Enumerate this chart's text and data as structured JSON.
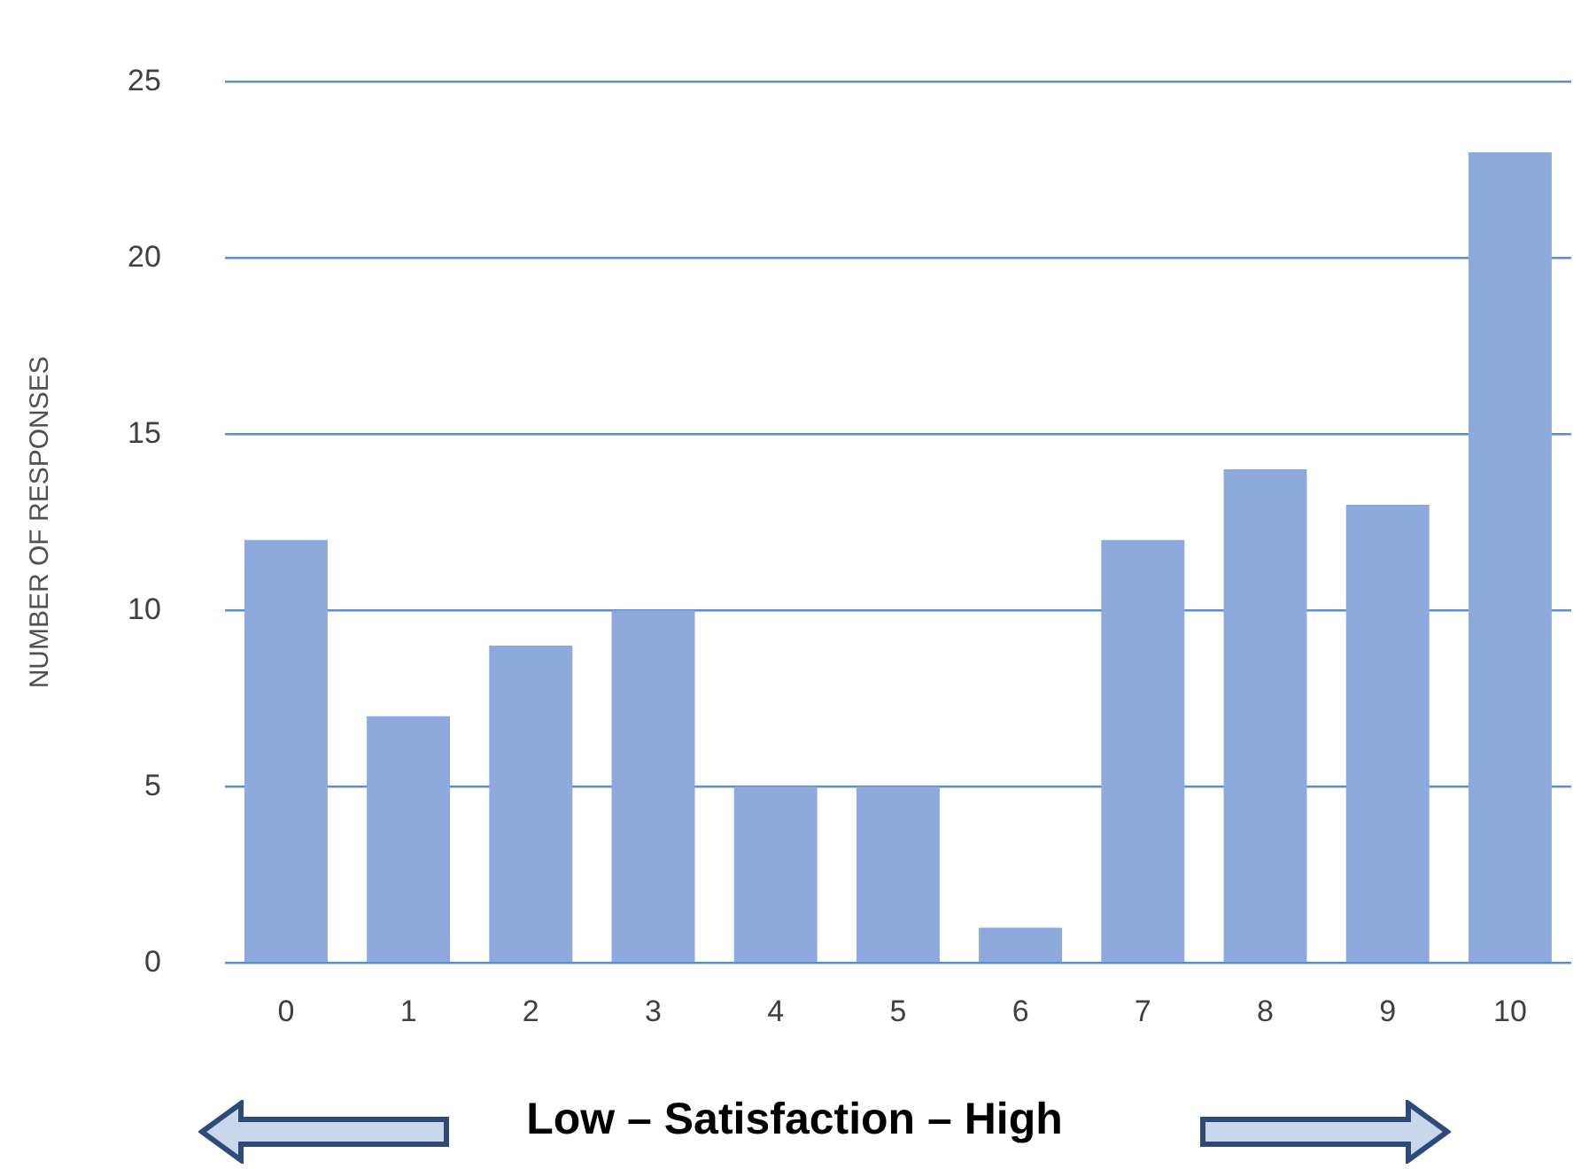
{
  "chart_data": {
    "type": "bar",
    "xlabel": "Low – Satisfaction – High",
    "ylabel": "NUMBER OF RESPONSES",
    "categories": [
      "0",
      "1",
      "2",
      "3",
      "4",
      "5",
      "6",
      "7",
      "8",
      "9",
      "10"
    ],
    "values": [
      12,
      7,
      9,
      10,
      5,
      5,
      1,
      12,
      14,
      13,
      23
    ],
    "color": "#8eaadc",
    "ylim": [
      0,
      25
    ],
    "yticks": [
      0,
      5,
      10,
      15,
      20,
      25
    ],
    "grid": "y",
    "legend": false
  }
}
